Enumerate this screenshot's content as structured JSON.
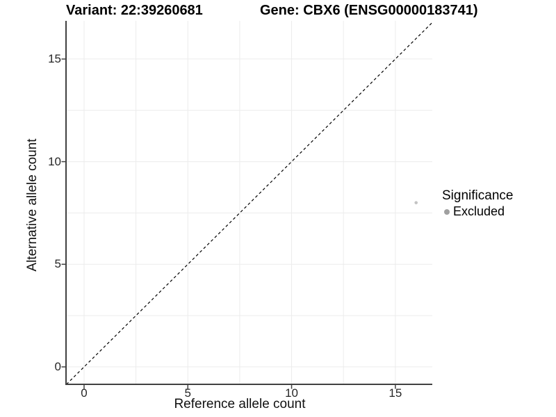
{
  "chart_data": {
    "type": "scatter",
    "titles": {
      "left": "Variant: 22:39260681",
      "right": "Gene: CBX6 (ENSG00000183741)"
    },
    "xlabel": "Reference allele count",
    "ylabel": "Alternative allele count",
    "x_ticks": [
      0,
      5,
      10,
      15
    ],
    "y_ticks": [
      0,
      5,
      10,
      15
    ],
    "xlim": [
      -0.87,
      16.78
    ],
    "ylim": [
      -0.85,
      16.86
    ],
    "grid": {
      "show": true,
      "step": 2.5,
      "min": 0,
      "max": 15,
      "color": "#ececec"
    },
    "identity_line": {
      "style": "dashed",
      "equation": "y = x",
      "color": "#000000"
    },
    "points": [
      {
        "x": 16,
        "y": 8,
        "series": "Excluded",
        "color": "#c3c3c3"
      }
    ],
    "legend": {
      "title": "Significance",
      "position": "right",
      "items": [
        {
          "label": "Excluded",
          "color": "#a0a0a0"
        }
      ]
    },
    "colors": {
      "axis_line": "#404040",
      "tick": "#404040",
      "tick_label": "#262626"
    }
  }
}
